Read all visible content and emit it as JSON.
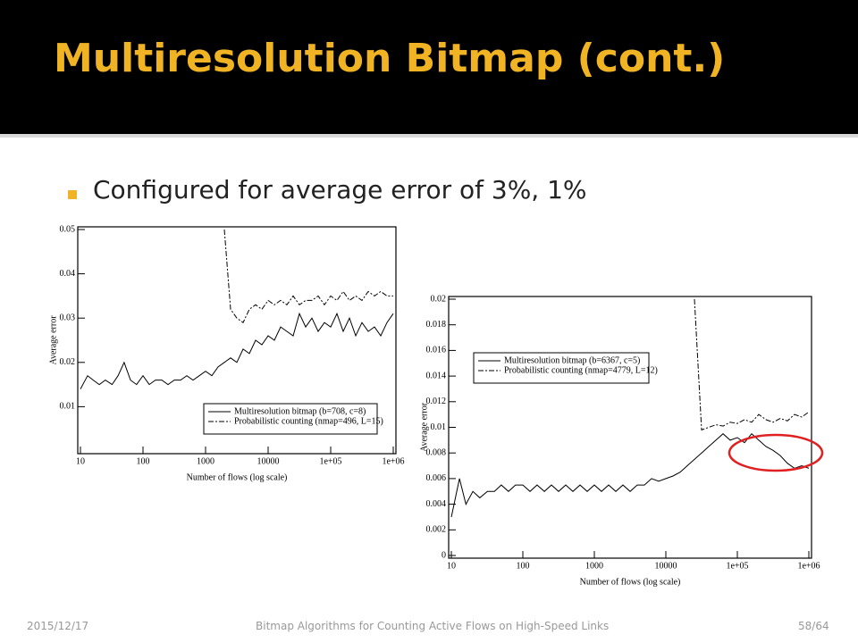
{
  "slide": {
    "title": "Multiresolution Bitmap (cont.)",
    "bullet": "Configured for average error of 3%, 1%",
    "footer": {
      "date": "2015/12/17",
      "caption": "Bitmap Algorithms for Counting Active Flows on High-Speed Links",
      "page": "58/64"
    }
  },
  "chart_data": [
    {
      "type": "line",
      "x_label": "Number of flows (log scale)",
      "y_label": "Average error",
      "log_x": true,
      "x": [
        10,
        13,
        16,
        20,
        25,
        32,
        40,
        50,
        63,
        79,
        100,
        126,
        158,
        200,
        251,
        316,
        398,
        501,
        631,
        794,
        1000,
        1259,
        1585,
        1995,
        2512,
        3162,
        3981,
        5012,
        6310,
        7943,
        10000,
        12589,
        15849,
        19953,
        25119,
        31623,
        39811,
        50119,
        63096,
        79433,
        100000,
        125893,
        158489,
        199526,
        251189,
        316228,
        398107,
        501187,
        630957,
        794328,
        1000000
      ],
      "xlim": [
        10,
        1000000
      ],
      "xticks": [
        10,
        100,
        1000,
        10000,
        {
          "value": 100000,
          "label": "1e+05"
        },
        {
          "value": 1000000,
          "label": "1e+06"
        }
      ],
      "ylim": [
        0,
        0.05
      ],
      "yticks": [
        0.01,
        0.02,
        0.03,
        0.04,
        0.05
      ],
      "series": [
        {
          "name": "Multiresolution bitmap (b=708, c=8)",
          "color": "#000000",
          "dash": "none",
          "values": [
            0.014,
            0.017,
            0.016,
            0.015,
            0.016,
            0.015,
            0.017,
            0.02,
            0.016,
            0.015,
            0.017,
            0.015,
            0.016,
            0.016,
            0.015,
            0.016,
            0.016,
            0.017,
            0.016,
            0.017,
            0.018,
            0.017,
            0.019,
            0.02,
            0.021,
            0.02,
            0.023,
            0.022,
            0.025,
            0.024,
            0.026,
            0.025,
            0.028,
            0.027,
            0.026,
            0.031,
            0.028,
            0.03,
            0.027,
            0.029,
            0.028,
            0.031,
            0.027,
            0.03,
            0.026,
            0.029,
            0.027,
            0.028,
            0.026,
            0.029,
            0.031
          ]
        },
        {
          "name": "Probabilistic counting (nmap=496, L=15)",
          "color": "#000000",
          "dash": "6 2 2 2",
          "values": [
            null,
            null,
            null,
            null,
            null,
            null,
            null,
            null,
            null,
            null,
            null,
            null,
            null,
            null,
            null,
            null,
            null,
            null,
            null,
            null,
            null,
            null,
            null,
            0.05,
            0.032,
            0.03,
            0.029,
            0.032,
            0.033,
            0.032,
            0.034,
            0.033,
            0.034,
            0.033,
            0.035,
            0.033,
            0.034,
            0.034,
            0.035,
            0.033,
            0.035,
            0.034,
            0.036,
            0.034,
            0.035,
            0.034,
            0.036,
            0.035,
            0.036,
            0.035,
            0.035
          ]
        }
      ]
    },
    {
      "type": "line",
      "x_label": "Number of flows (log scale)",
      "y_label": "Average error",
      "log_x": true,
      "x": [
        10,
        13,
        16,
        20,
        25,
        32,
        40,
        50,
        63,
        79,
        100,
        126,
        158,
        200,
        251,
        316,
        398,
        501,
        631,
        794,
        1000,
        1259,
        1585,
        1995,
        2512,
        3162,
        3981,
        5012,
        6310,
        7943,
        10000,
        12589,
        15849,
        19953,
        25119,
        31623,
        39811,
        50119,
        63096,
        79433,
        100000,
        125893,
        158489,
        199526,
        251189,
        316228,
        398107,
        501187,
        630957,
        794328,
        1000000
      ],
      "xlim": [
        10,
        1000000
      ],
      "xticks": [
        10,
        100,
        1000,
        10000,
        {
          "value": 100000,
          "label": "1e+05"
        },
        {
          "value": 1000000,
          "label": "1e+06"
        }
      ],
      "ylim": [
        0,
        0.02
      ],
      "yticks": [
        0,
        0.002,
        0.004,
        0.006,
        0.008,
        0.01,
        0.012,
        0.014,
        0.016,
        0.018,
        0.02
      ],
      "series": [
        {
          "name": "Multiresolution bitmap (b=6367, c=5)",
          "color": "#000000",
          "dash": "none",
          "values": [
            0.003,
            0.006,
            0.004,
            0.005,
            0.0045,
            0.005,
            0.005,
            0.0055,
            0.005,
            0.0055,
            0.0055,
            0.005,
            0.0055,
            0.005,
            0.0055,
            0.005,
            0.0055,
            0.005,
            0.0055,
            0.005,
            0.0055,
            0.005,
            0.0055,
            0.005,
            0.0055,
            0.005,
            0.0055,
            0.0055,
            0.006,
            0.0058,
            0.006,
            0.0062,
            0.0065,
            0.007,
            0.0075,
            0.008,
            0.0085,
            0.009,
            0.0095,
            0.009,
            0.0092,
            0.0088,
            0.0095,
            0.009,
            0.0085,
            0.0082,
            0.0078,
            0.0072,
            0.0068,
            0.007,
            0.0068
          ]
        },
        {
          "name": "Probabilistic counting (nmap=4779, L=12)",
          "color": "#000000",
          "dash": "6 2 2 2",
          "values": [
            null,
            null,
            null,
            null,
            null,
            null,
            null,
            null,
            null,
            null,
            null,
            null,
            null,
            null,
            null,
            null,
            null,
            null,
            null,
            null,
            null,
            null,
            null,
            null,
            null,
            null,
            null,
            null,
            null,
            null,
            null,
            null,
            null,
            null,
            0.02,
            0.0098,
            0.01,
            0.0102,
            0.0101,
            0.0104,
            0.0103,
            0.0106,
            0.0104,
            0.011,
            0.0106,
            0.0104,
            0.0107,
            0.0105,
            0.011,
            0.0108,
            0.0112
          ]
        }
      ]
    }
  ]
}
